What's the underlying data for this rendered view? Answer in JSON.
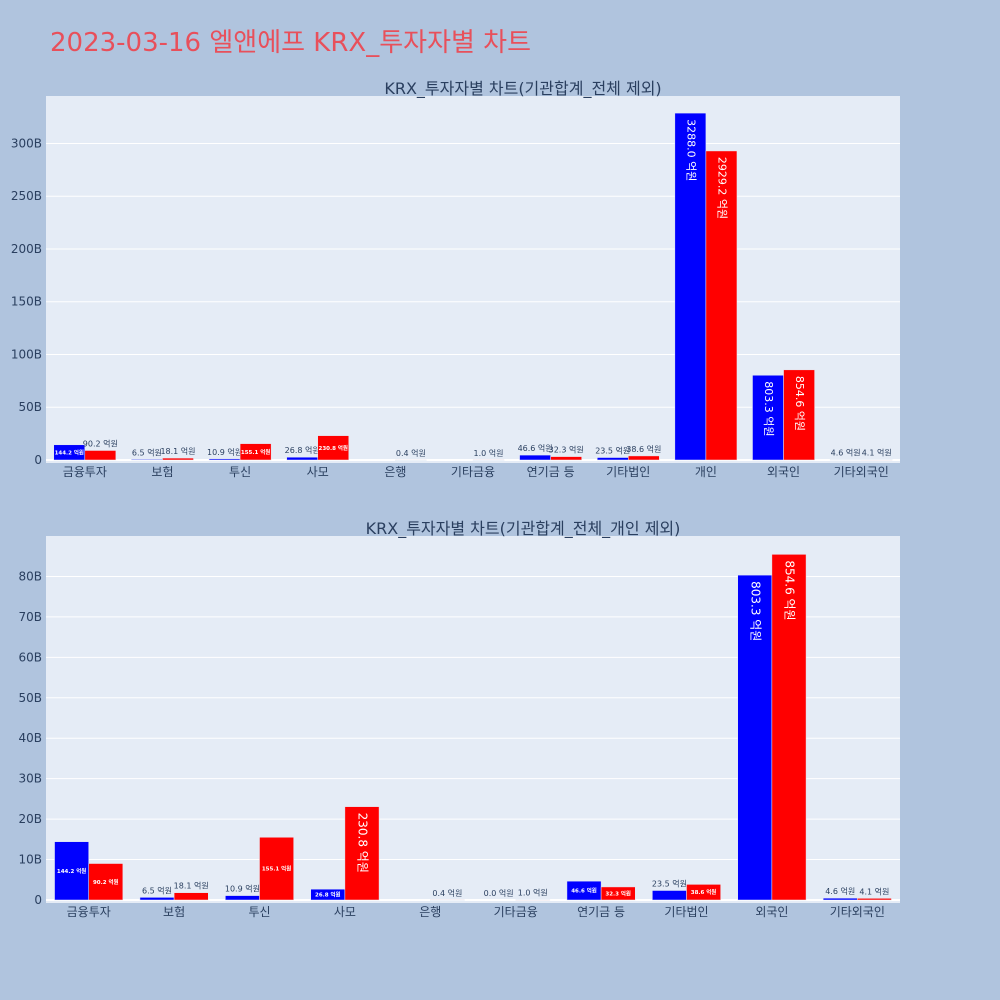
{
  "page": {
    "title": "2023-03-16 엘앤에프 KRX_투자자별 차트"
  },
  "colors": {
    "buy": "#0000ff",
    "sell": "#ff0000",
    "plot_bg": "#e5ecf6",
    "paper_bg": "#b0c4de",
    "title": "#e8505b"
  },
  "chart_data": [
    {
      "type": "bar",
      "title": "KRX_투자자별 차트(기관합계_전체 제외)",
      "categories": [
        "금융투자",
        "보험",
        "투신",
        "사모",
        "은행",
        "기타금융",
        "연기금 등",
        "기타법인",
        "개인",
        "외국인",
        "기타외국인"
      ],
      "series": [
        {
          "color": "#0000ff",
          "values": [
            14.42,
            0.65,
            1.09,
            2.68,
            null,
            null,
            4.66,
            2.35,
            328.8,
            80.33,
            0.46
          ],
          "labels": [
            "144.2 억원",
            "6.5 억원",
            "10.9 억원",
            "26.8 억원",
            "",
            "",
            "46.6 억원",
            "23.5 억원",
            "3288.0 억원",
            "803.3 억원",
            "4.6 억원"
          ]
        },
        {
          "color": "#ff0000",
          "values": [
            9.02,
            1.81,
            15.51,
            23.08,
            0.04,
            0.1,
            3.23,
            3.86,
            292.92,
            85.46,
            0.41
          ],
          "labels": [
            "90.2 억원",
            "18.1 억원",
            "155.1 억원",
            "230.8 억원",
            "0.4 억원",
            "1.0 억원",
            "32.3 억원",
            "38.6 억원",
            "2929.2 억원",
            "854.6 억원",
            "4.1 억원"
          ]
        }
      ],
      "ylim": [
        0,
        345
      ],
      "yticks": [
        0,
        50,
        100,
        150,
        200,
        250,
        300
      ],
      "ytick_labels": [
        "0",
        "50B",
        "100B",
        "150B",
        "200B",
        "250B",
        "300B"
      ],
      "grid": true
    },
    {
      "type": "bar",
      "title": "KRX_투자자별 차트(기관합계_전체_개인 제외)",
      "categories": [
        "금융투자",
        "보험",
        "투신",
        "사모",
        "은행",
        "기타금융",
        "연기금 등",
        "기타법인",
        "외국인",
        "기타외국인"
      ],
      "series": [
        {
          "color": "#0000ff",
          "values": [
            14.42,
            0.65,
            1.09,
            2.68,
            null,
            0.0,
            4.66,
            2.35,
            80.33,
            0.46
          ],
          "labels": [
            "144.2 억원",
            "6.5 억원",
            "10.9 억원",
            "26.8 억원",
            "",
            "0.0 억원",
            "46.6 억원",
            "23.5 억원",
            "803.3 억원",
            "4.6 억원"
          ]
        },
        {
          "color": "#ff0000",
          "values": [
            9.02,
            1.81,
            15.51,
            23.08,
            0.04,
            0.1,
            3.23,
            3.86,
            85.46,
            0.41
          ],
          "labels": [
            "90.2 억원",
            "18.1 억원",
            "155.1 억원",
            "230.8 억원",
            "0.4 억원",
            "1.0 억원",
            "32.3 억원",
            "38.6 억원",
            "854.6 억원",
            "4.1 억원"
          ]
        }
      ],
      "ylim": [
        0,
        90
      ],
      "yticks": [
        0,
        10,
        20,
        30,
        40,
        50,
        60,
        70,
        80
      ],
      "ytick_labels": [
        "0",
        "10B",
        "20B",
        "30B",
        "40B",
        "50B",
        "60B",
        "70B",
        "80B"
      ],
      "grid": true
    }
  ]
}
